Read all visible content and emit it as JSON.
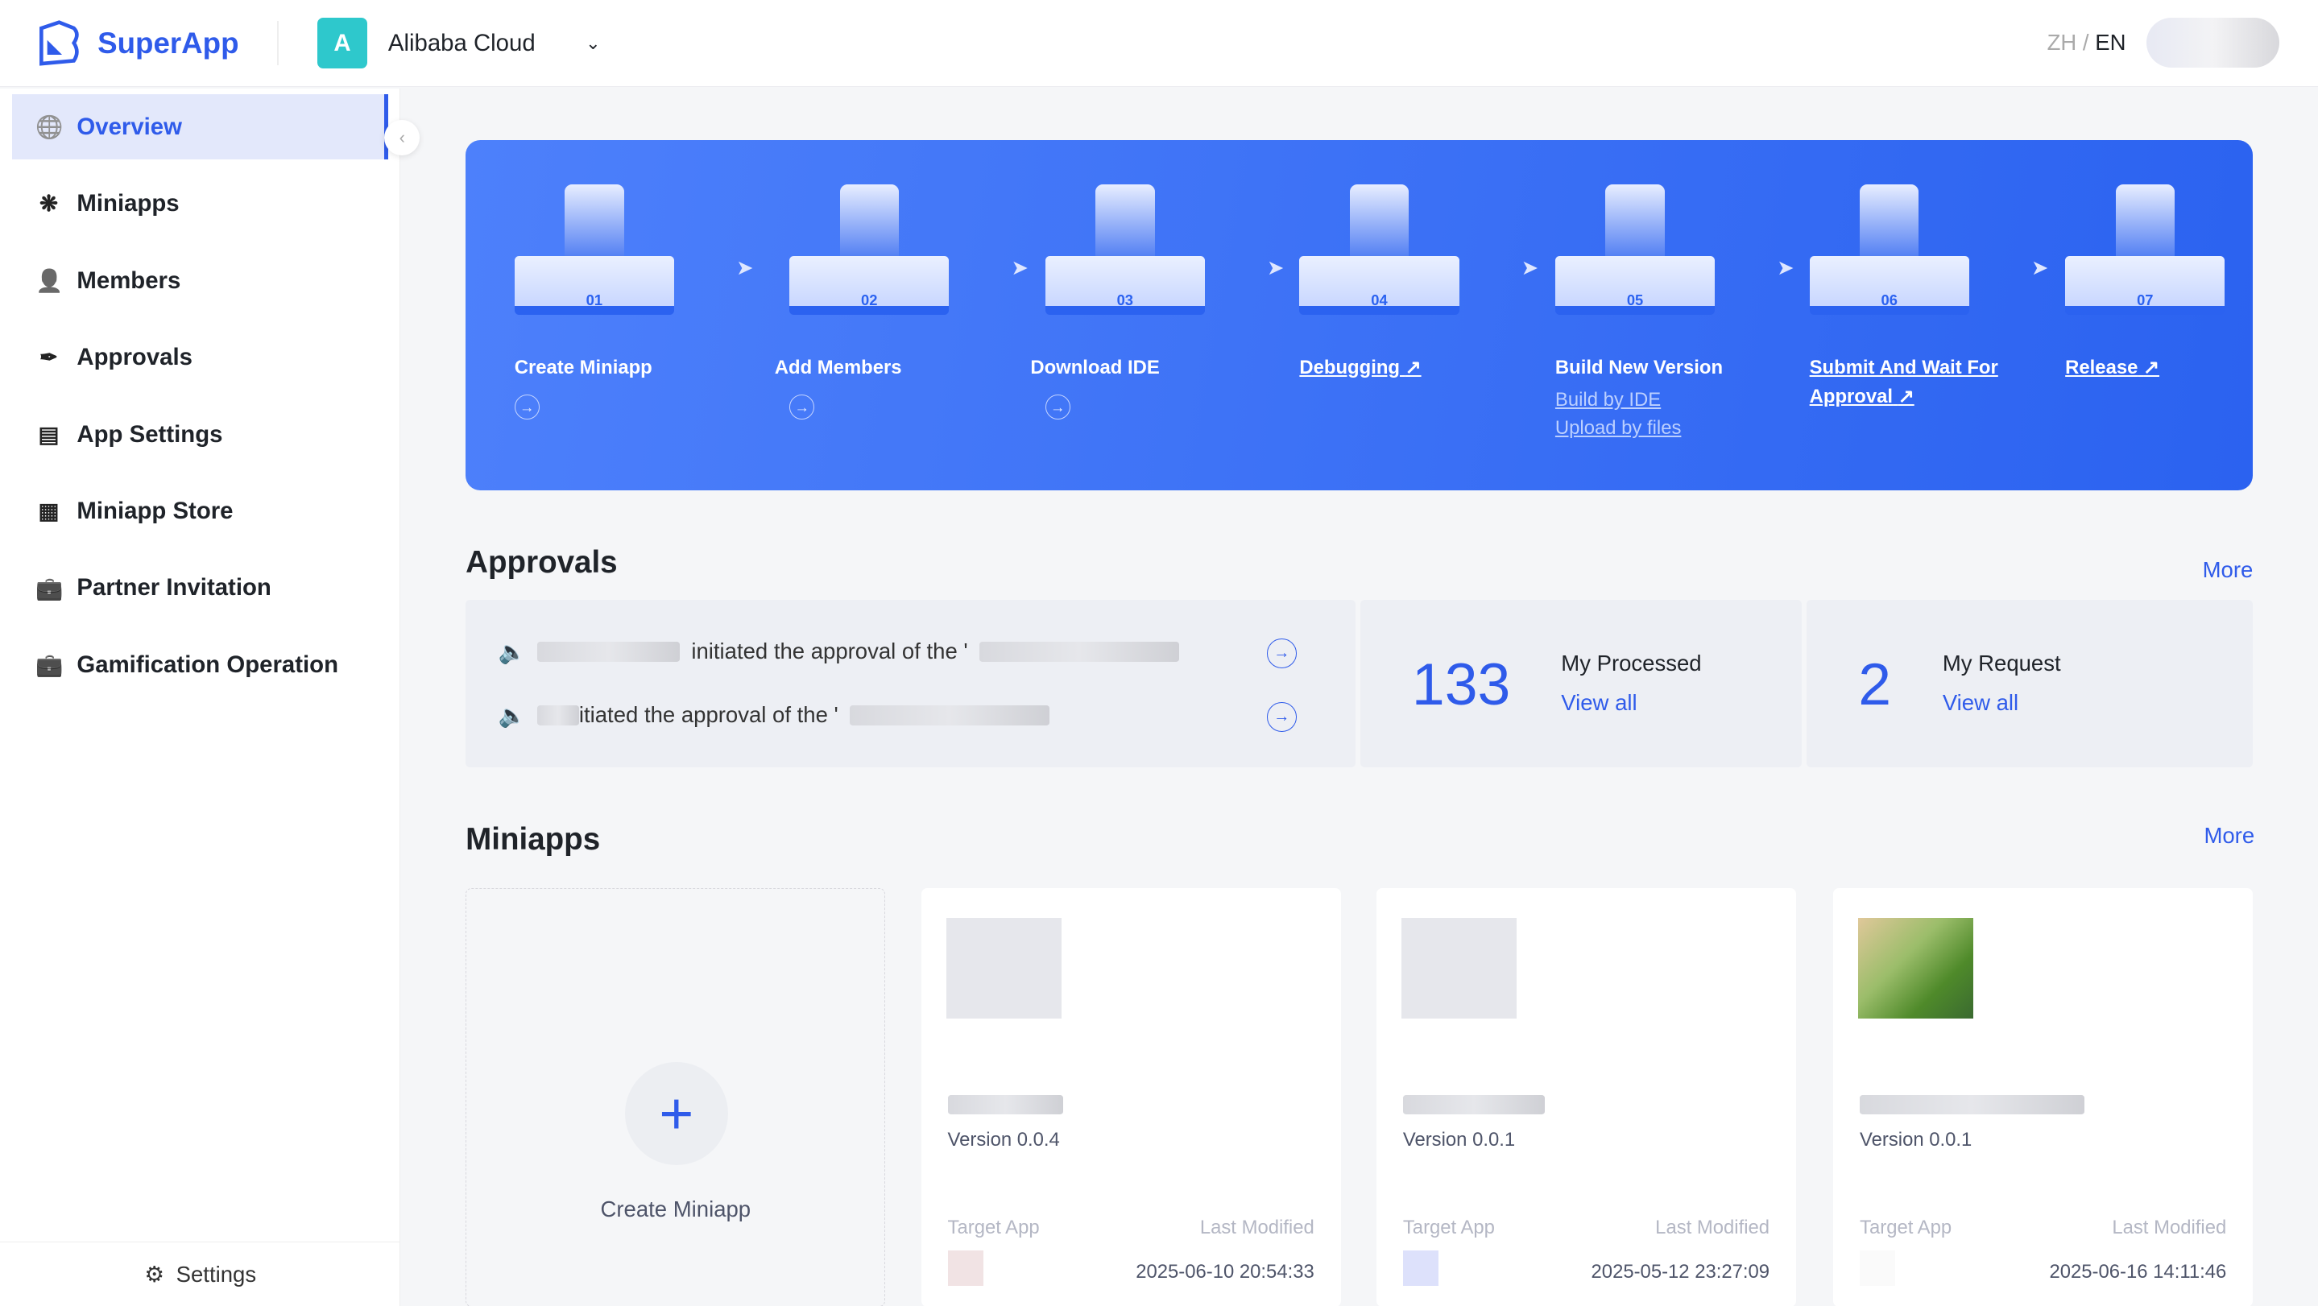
{
  "header": {
    "brand": "SuperApp",
    "org_initial": "A",
    "org_name": "Alibaba Cloud",
    "lang_zh": "ZH",
    "lang_sep": "/",
    "lang_en": "EN"
  },
  "sidebar": {
    "items": [
      {
        "label": "Overview",
        "icon": "globe-icon"
      },
      {
        "label": "Miniapps",
        "icon": "aperture-icon"
      },
      {
        "label": "Members",
        "icon": "user-add-icon"
      },
      {
        "label": "Approvals",
        "icon": "stamp-icon"
      },
      {
        "label": "App Settings",
        "icon": "panel-icon"
      },
      {
        "label": "Miniapp Store",
        "icon": "grid-icon"
      },
      {
        "label": "Partner Invitation",
        "icon": "briefcase-icon"
      },
      {
        "label": "Gamification Operation",
        "icon": "briefcase-icon"
      }
    ],
    "settings": "Settings"
  },
  "steps": [
    {
      "num": "01",
      "label": "Create Miniapp",
      "link": false
    },
    {
      "num": "02",
      "label": "Add Members",
      "link": false
    },
    {
      "num": "03",
      "label": "Download IDE",
      "link": false
    },
    {
      "num": "04",
      "label": "Debugging",
      "link": true
    },
    {
      "num": "05",
      "label": "Build New Version",
      "link": false,
      "subs": [
        "Build by IDE",
        "Upload by files"
      ]
    },
    {
      "num": "06",
      "label": "Submit And Wait For Approval",
      "link": true
    },
    {
      "num": "07",
      "label": "Release",
      "link": true
    }
  ],
  "approvals": {
    "title": "Approvals",
    "more": "More",
    "items": [
      "initiated the approval of the '",
      "itiated the approval of the '"
    ],
    "processed_count": "133",
    "processed_label": "My Processed",
    "request_count": "2",
    "request_label": "My Request",
    "view_all": "View all"
  },
  "miniapps": {
    "title": "Miniapps",
    "more": "More",
    "create": "Create Miniapp",
    "target_label": "Target App",
    "modified_label": "Last Modified",
    "cards": [
      {
        "version": "Version 0.0.4",
        "modified": "2025-06-10 20:54:33"
      },
      {
        "version": "Version 0.0.1",
        "modified": "2025-05-12 23:27:09"
      },
      {
        "version": "Version 0.0.1",
        "modified": "2025-06-16 14:11:46"
      }
    ]
  }
}
